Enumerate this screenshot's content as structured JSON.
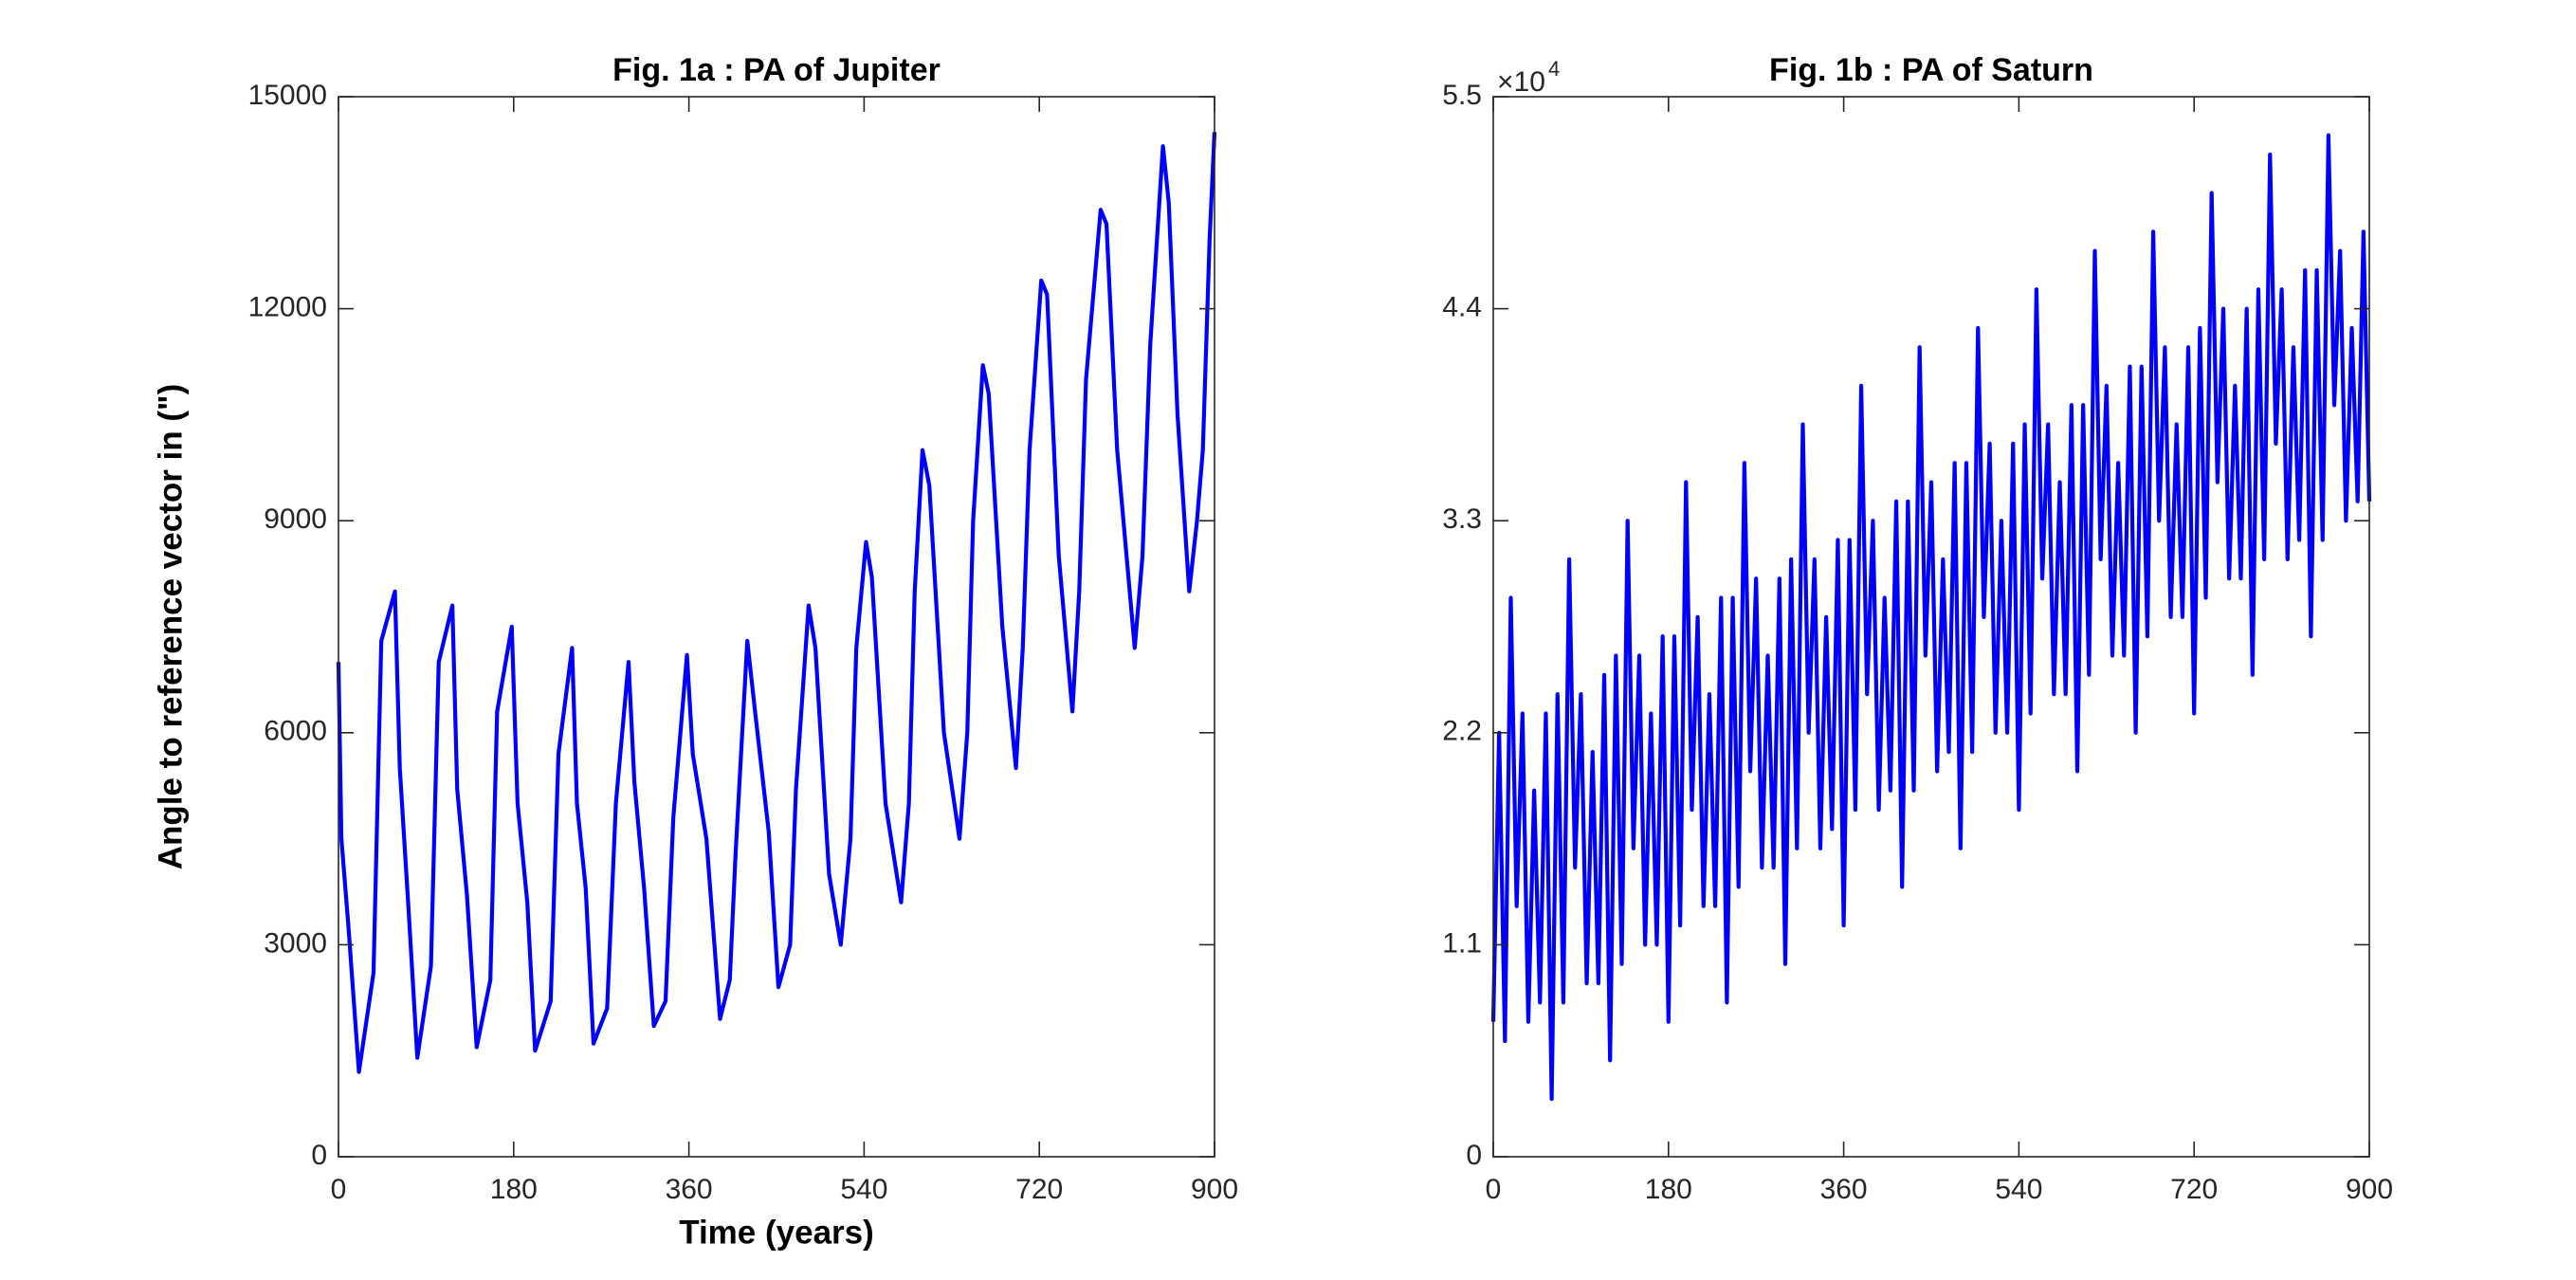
{
  "chart_data": [
    {
      "type": "line",
      "title": "Fig. 1a : PA of Jupiter",
      "x_label": "Time (years)",
      "y_label": "Angle to reference vector in (\")",
      "xlim": [
        0,
        900
      ],
      "xticks": [
        0,
        180,
        360,
        540,
        720,
        900
      ],
      "ylim": [
        0,
        15000
      ],
      "yticks": [
        0,
        3000,
        6000,
        9000,
        12000,
        15000
      ],
      "series": [
        {
          "color": "#0000ff",
          "x": [
            0,
            3,
            10,
            21,
            36,
            44,
            58,
            63,
            72,
            81,
            95,
            103,
            117,
            122,
            132,
            142,
            156,
            163,
            178,
            184,
            194,
            202,
            218,
            226,
            240,
            245,
            254,
            262,
            276,
            285,
            298,
            304,
            314,
            324,
            336,
            344,
            358,
            364,
            378,
            392,
            402,
            408,
            420,
            428,
            442,
            452,
            464,
            470,
            483,
            490,
            504,
            516,
            526,
            532,
            542,
            548,
            562,
            578,
            586,
            592,
            600,
            607,
            622,
            638,
            646,
            652,
            662,
            668,
            682,
            696,
            703,
            710,
            722,
            728,
            740,
            754,
            761,
            768,
            783,
            789,
            800,
            818,
            826,
            834,
            847,
            853,
            862,
            874,
            882,
            888,
            895,
            900
          ],
          "values": [
            7000,
            4500,
            3300,
            1200,
            2600,
            7300,
            8000,
            5500,
            3500,
            1400,
            2700,
            7000,
            7800,
            5200,
            3700,
            1550,
            2500,
            6300,
            7500,
            5000,
            3600,
            1500,
            2200,
            5700,
            7200,
            5000,
            3800,
            1600,
            2100,
            5000,
            7000,
            5300,
            3800,
            1850,
            2200,
            4800,
            7100,
            5700,
            4500,
            1950,
            2500,
            4300,
            7300,
            6300,
            4600,
            2400,
            3000,
            5200,
            7800,
            7200,
            4000,
            3000,
            4500,
            7200,
            8700,
            8200,
            5000,
            3600,
            5000,
            8000,
            10000,
            9500,
            6000,
            4500,
            6000,
            9000,
            11200,
            10800,
            7500,
            5500,
            7200,
            10000,
            12400,
            12200,
            8500,
            6300,
            8000,
            11000,
            13400,
            13200,
            10000,
            7200,
            8500,
            11500,
            14300,
            13500,
            10500,
            8000,
            9000,
            10000,
            13000,
            14500
          ]
        }
      ]
    },
    {
      "type": "line",
      "title": "Fig. 1b : PA of Saturn",
      "y_exponent_base": "×10",
      "y_exponent": "4",
      "xlim": [
        0,
        900
      ],
      "xticks": [
        0,
        180,
        360,
        540,
        720,
        900
      ],
      "ylim": [
        0,
        5.5
      ],
      "yticks": [
        0,
        1.1,
        2.2,
        3.3,
        4.4,
        5.5
      ],
      "series": [
        {
          "color": "#0000ff",
          "x": [
            0,
            6,
            12,
            18,
            24,
            30,
            36,
            42,
            48,
            54,
            60,
            66,
            72,
            78,
            84,
            90,
            96,
            102,
            108,
            114,
            120,
            126,
            132,
            138,
            144,
            150,
            156,
            162,
            168,
            174,
            180,
            186,
            192,
            198,
            204,
            210,
            216,
            222,
            228,
            234,
            240,
            246,
            252,
            258,
            264,
            270,
            276,
            282,
            288,
            294,
            300,
            306,
            312,
            318,
            324,
            330,
            336,
            342,
            348,
            354,
            360,
            366,
            372,
            378,
            384,
            390,
            396,
            402,
            408,
            414,
            420,
            426,
            432,
            438,
            444,
            450,
            456,
            462,
            468,
            474,
            480,
            486,
            492,
            498,
            504,
            510,
            516,
            522,
            528,
            534,
            540,
            546,
            552,
            558,
            564,
            570,
            576,
            582,
            588,
            594,
            600,
            606,
            612,
            618,
            624,
            630,
            636,
            642,
            648,
            654,
            660,
            666,
            672,
            678,
            684,
            690,
            696,
            702,
            708,
            714,
            720,
            726,
            732,
            738,
            744,
            750,
            756,
            762,
            768,
            774,
            780,
            786,
            792,
            798,
            804,
            810,
            816,
            822,
            828,
            834,
            840,
            846,
            852,
            858,
            864,
            870,
            876,
            882,
            888,
            894,
            900
          ],
          "values": [
            0.7,
            2.2,
            0.6,
            2.9,
            1.3,
            2.3,
            0.7,
            1.9,
            0.8,
            2.3,
            0.3,
            2.4,
            0.8,
            3.1,
            1.5,
            2.4,
            0.9,
            2.1,
            0.9,
            2.5,
            0.5,
            2.6,
            1.0,
            3.3,
            1.6,
            2.6,
            1.1,
            2.3,
            1.1,
            2.7,
            0.7,
            2.7,
            1.2,
            3.5,
            1.8,
            2.8,
            1.3,
            2.4,
            1.3,
            2.9,
            0.8,
            2.9,
            1.4,
            3.6,
            2.0,
            3.0,
            1.5,
            2.6,
            1.5,
            3.0,
            1.0,
            3.1,
            1.6,
            3.8,
            2.2,
            3.1,
            1.6,
            2.8,
            1.7,
            3.2,
            1.2,
            3.2,
            1.8,
            4.0,
            2.4,
            3.3,
            1.8,
            2.9,
            1.9,
            3.4,
            1.4,
            3.4,
            1.9,
            4.2,
            2.6,
            3.5,
            2.0,
            3.1,
            2.1,
            3.6,
            1.6,
            3.6,
            2.1,
            4.3,
            2.8,
            3.7,
            2.2,
            3.3,
            2.2,
            3.7,
            1.8,
            3.8,
            2.3,
            4.5,
            3.0,
            3.8,
            2.4,
            3.5,
            2.4,
            3.9,
            2.0,
            3.9,
            2.5,
            4.7,
            3.1,
            4.0,
            2.6,
            3.6,
            2.6,
            4.1,
            2.2,
            4.1,
            2.7,
            4.8,
            3.3,
            4.2,
            2.8,
            3.8,
            2.8,
            4.2,
            2.3,
            4.3,
            2.9,
            5.0,
            3.5,
            4.4,
            3.0,
            4.0,
            3.0,
            4.4,
            2.5,
            4.5,
            3.1,
            5.2,
            3.7,
            4.5,
            3.1,
            4.2,
            3.2,
            4.6,
            2.7,
            4.6,
            3.2,
            5.3,
            3.9,
            4.7,
            3.3,
            4.3,
            3.4,
            4.8,
            3.4
          ]
        }
      ]
    }
  ]
}
